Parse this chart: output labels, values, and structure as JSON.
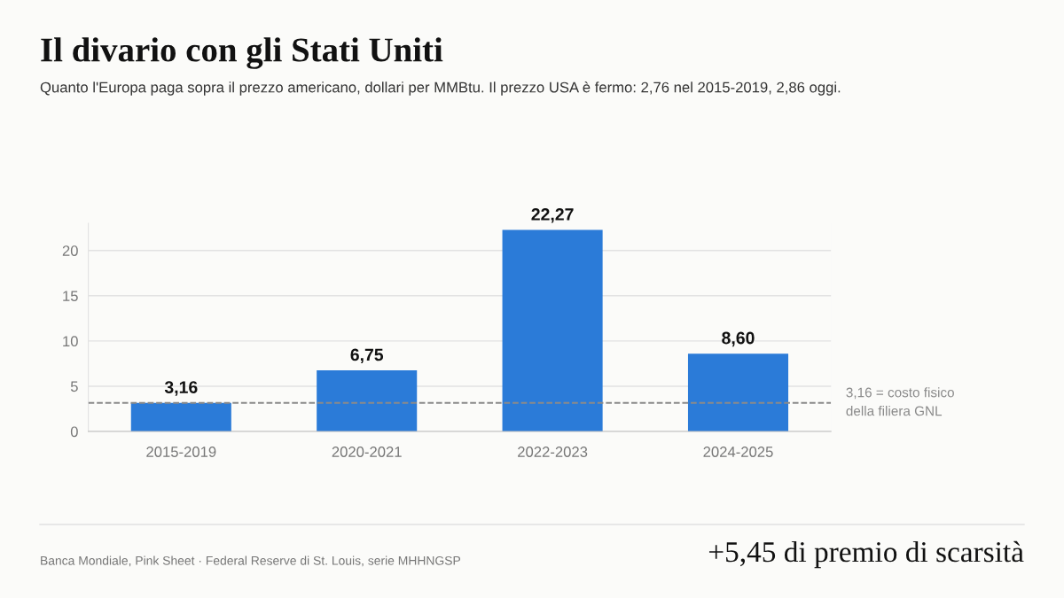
{
  "chart_data": {
    "type": "bar",
    "title": "Il divario con gli Stati Uniti",
    "subtitle": "Quanto l'Europa paga sopra il prezzo americano, dollari per MMBtu. Il prezzo USA è fermo: 2,76 nel 2015-2019, 2,86 oggi.",
    "categories": [
      "2015-2019",
      "2020-2021",
      "2022-2023",
      "2024-2025"
    ],
    "values": [
      3.16,
      6.75,
      22.27,
      8.6
    ],
    "value_labels": [
      "3,16",
      "6,75",
      "22,27",
      "8,60"
    ],
    "color": "#2b7bd8",
    "ylim": [
      0,
      23
    ],
    "yticks": [
      0,
      5,
      10,
      15,
      20
    ],
    "grid": "y",
    "ref_lines": [
      {
        "axis": "y",
        "value": 3.16,
        "label": "3,16 = costo fisico\ndella filiera GNL",
        "color": "#8a8a8a",
        "line_style": "dashed"
      }
    ],
    "annotations": [
      "Banca Mondiale, Pink Sheet · Federal Reserve di St. Louis, serie MHHNGSP",
      "+5,45 di premio di scarsità"
    ]
  }
}
